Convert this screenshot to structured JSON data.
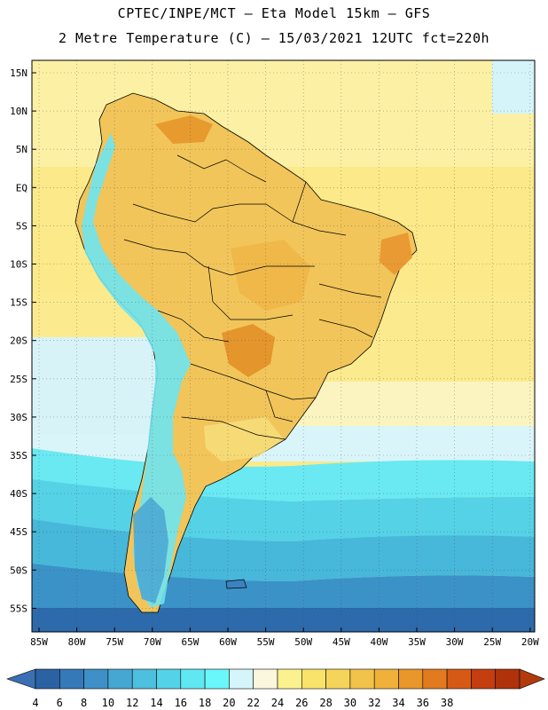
{
  "header": {
    "line1": "CPTEC/INPE/MCT –  Eta Model 15km – GFS",
    "line2": "2 Metre Temperature (C) – 15/03/2021 12UTC fct=220h"
  },
  "map": {
    "lat_labels": [
      "15N",
      "10N",
      "5N",
      "EQ",
      "5S",
      "10S",
      "15S",
      "20S",
      "25S",
      "30S",
      "35S",
      "40S",
      "45S",
      "50S",
      "55S"
    ],
    "lon_labels": [
      "85W",
      "80W",
      "75W",
      "70W",
      "65W",
      "60W",
      "55W",
      "50W",
      "45W",
      "40W",
      "35W",
      "30W",
      "25W",
      "20W"
    ]
  },
  "colorbar": {
    "labels": [
      "4",
      "6",
      "8",
      "10",
      "12",
      "14",
      "16",
      "18",
      "20",
      "22",
      "24",
      "26",
      "28",
      "30",
      "32",
      "34",
      "36",
      "38"
    ],
    "colors": [
      "#2b62a4",
      "#3579b8",
      "#3e90c6",
      "#46a7d3",
      "#4dbfdf",
      "#54d3e8",
      "#5fe8f2",
      "#6af7fb",
      "#d4f6fb",
      "#fbf7df",
      "#fbf28f",
      "#f9e36b",
      "#f5d45a",
      "#f2c34a",
      "#efb13a",
      "#e9962a",
      "#e27a1f",
      "#d65a16",
      "#c43e10",
      "#b0320b"
    ],
    "arrow_left": "#3a70b3",
    "arrow_right": "#b23a0d"
  }
}
